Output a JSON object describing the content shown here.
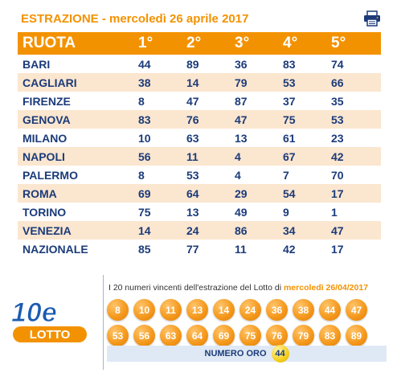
{
  "header": {
    "title": "ESTRAZIONE - mercoledì 26 aprile 2017",
    "print_icon": "printer-icon"
  },
  "table": {
    "columns": [
      "RUOTA",
      "1°",
      "2°",
      "3°",
      "4°",
      "5°"
    ],
    "rows": [
      {
        "name": "BARI",
        "numbers": [
          "44",
          "89",
          "36",
          "83",
          "74"
        ]
      },
      {
        "name": "CAGLIARI",
        "numbers": [
          "38",
          "14",
          "79",
          "53",
          "66"
        ]
      },
      {
        "name": "FIRENZE",
        "numbers": [
          "8",
          "47",
          "87",
          "37",
          "35"
        ]
      },
      {
        "name": "GENOVA",
        "numbers": [
          "83",
          "76",
          "47",
          "75",
          "53"
        ]
      },
      {
        "name": "MILANO",
        "numbers": [
          "10",
          "63",
          "13",
          "61",
          "23"
        ]
      },
      {
        "name": "NAPOLI",
        "numbers": [
          "56",
          "11",
          "4",
          "67",
          "42"
        ]
      },
      {
        "name": "PALERMO",
        "numbers": [
          "8",
          "53",
          "4",
          "7",
          "70"
        ]
      },
      {
        "name": "ROMA",
        "numbers": [
          "69",
          "64",
          "29",
          "54",
          "17"
        ]
      },
      {
        "name": "TORINO",
        "numbers": [
          "75",
          "13",
          "49",
          "9",
          "1"
        ]
      },
      {
        "name": "VENEZIA",
        "numbers": [
          "14",
          "24",
          "86",
          "34",
          "47"
        ]
      },
      {
        "name": "NAZIONALE",
        "numbers": [
          "85",
          "77",
          "11",
          "42",
          "17"
        ]
      }
    ]
  },
  "lotto": {
    "logo_text_top": "10e",
    "logo_text_bottom": "LOTTO",
    "caption": "I 20 numeri vincenti dell'estrazione del Lotto di",
    "caption_date": "mercoledì 26/04/2017",
    "winning_numbers": [
      "8",
      "10",
      "11",
      "13",
      "14",
      "24",
      "36",
      "38",
      "44",
      "47",
      "53",
      "56",
      "63",
      "64",
      "69",
      "75",
      "76",
      "79",
      "83",
      "89"
    ],
    "oro_label": "NUMERO ORO",
    "oro_number": "44"
  },
  "colors": {
    "accent": "#f39200",
    "row_alt": "#fbe6cf",
    "text": "#1b3b7a"
  }
}
